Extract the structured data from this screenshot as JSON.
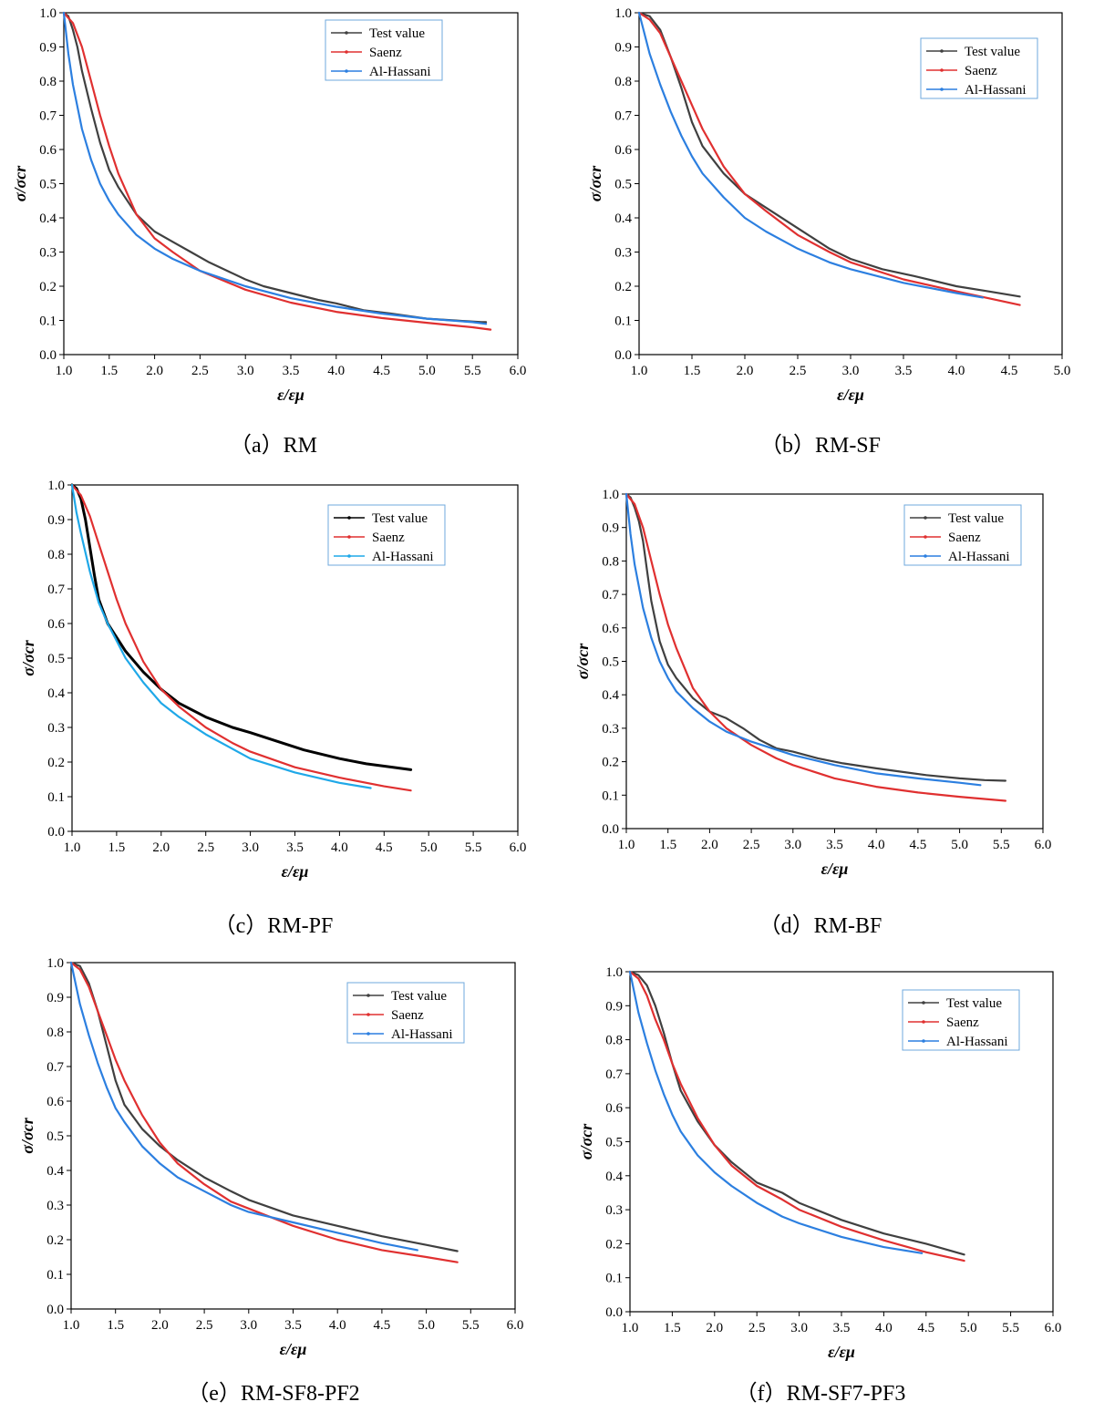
{
  "colors": {
    "test": "#404040",
    "saenz": "#e03030",
    "alhassani": "#2c7fe0",
    "alhassani_c": "#1fa8e8",
    "legend_border": "#6fa8dc"
  },
  "chart_data": [
    {
      "type": "line",
      "caption": "（a）RM",
      "xlabel": "ε/εμ",
      "ylabel": "σ/σcr",
      "xlim": [
        1.0,
        6.0
      ],
      "ylim": [
        0.0,
        1.0
      ],
      "xstep": 0.5,
      "ystep": 0.1,
      "legend": [
        "Test value",
        "Saenz",
        "Al-Hassani"
      ],
      "legend_position": "top-right",
      "series": [
        {
          "name": "Test value",
          "x": [
            1.0,
            1.05,
            1.1,
            1.15,
            1.2,
            1.3,
            1.4,
            1.5,
            1.6,
            1.8,
            2.0,
            2.2,
            2.4,
            2.6,
            2.8,
            3.0,
            3.2,
            3.5,
            3.8,
            4.0,
            4.3,
            4.6,
            5.0,
            5.3,
            5.6,
            5.65
          ],
          "y": [
            1.0,
            0.99,
            0.95,
            0.9,
            0.83,
            0.72,
            0.62,
            0.54,
            0.49,
            0.41,
            0.36,
            0.33,
            0.3,
            0.27,
            0.245,
            0.22,
            0.2,
            0.18,
            0.16,
            0.15,
            0.13,
            0.12,
            0.105,
            0.1,
            0.095,
            0.095
          ]
        },
        {
          "name": "Saenz",
          "x": [
            1.0,
            1.1,
            1.2,
            1.3,
            1.4,
            1.5,
            1.6,
            1.8,
            2.0,
            2.2,
            2.5,
            3.0,
            3.5,
            4.0,
            4.5,
            5.0,
            5.5,
            5.7
          ],
          "y": [
            1.0,
            0.97,
            0.9,
            0.8,
            0.7,
            0.61,
            0.53,
            0.41,
            0.34,
            0.3,
            0.245,
            0.19,
            0.152,
            0.125,
            0.107,
            0.093,
            0.08,
            0.073
          ]
        },
        {
          "name": "Al-Hassani",
          "x": [
            1.0,
            1.05,
            1.1,
            1.2,
            1.3,
            1.4,
            1.5,
            1.6,
            1.8,
            2.0,
            2.2,
            2.5,
            3.0,
            3.5,
            4.0,
            4.5,
            5.0,
            5.5,
            5.65
          ],
          "y": [
            1.0,
            0.88,
            0.79,
            0.66,
            0.57,
            0.5,
            0.45,
            0.41,
            0.35,
            0.31,
            0.28,
            0.245,
            0.2,
            0.165,
            0.14,
            0.12,
            0.105,
            0.095,
            0.09
          ]
        }
      ]
    },
    {
      "type": "line",
      "caption": "（b）RM-SF",
      "xlabel": "ε/εμ",
      "ylabel": "σ/σcr",
      "xlim": [
        1.0,
        5.0
      ],
      "ylim": [
        0.0,
        1.0
      ],
      "xstep": 0.5,
      "ystep": 0.1,
      "legend": [
        "Test value",
        "Saenz",
        "Al-Hassani"
      ],
      "legend_position": "top-right",
      "series": [
        {
          "name": "Test value",
          "x": [
            1.0,
            1.1,
            1.2,
            1.3,
            1.4,
            1.5,
            1.6,
            1.8,
            2.0,
            2.2,
            2.5,
            2.8,
            3.0,
            3.3,
            3.6,
            4.0,
            4.3,
            4.6
          ],
          "y": [
            1.0,
            0.99,
            0.95,
            0.87,
            0.78,
            0.68,
            0.61,
            0.53,
            0.47,
            0.43,
            0.37,
            0.31,
            0.28,
            0.25,
            0.23,
            0.2,
            0.185,
            0.17
          ]
        },
        {
          "name": "Saenz",
          "x": [
            1.0,
            1.1,
            1.2,
            1.3,
            1.4,
            1.5,
            1.6,
            1.8,
            2.0,
            2.2,
            2.5,
            2.8,
            3.0,
            3.5,
            4.0,
            4.3,
            4.6
          ],
          "y": [
            1.0,
            0.98,
            0.94,
            0.87,
            0.8,
            0.73,
            0.66,
            0.55,
            0.47,
            0.42,
            0.35,
            0.3,
            0.27,
            0.22,
            0.185,
            0.165,
            0.145
          ]
        },
        {
          "name": "Al-Hassani",
          "x": [
            1.0,
            1.1,
            1.2,
            1.3,
            1.4,
            1.5,
            1.6,
            1.8,
            2.0,
            2.2,
            2.5,
            2.8,
            3.0,
            3.5,
            4.0,
            4.25
          ],
          "y": [
            1.0,
            0.88,
            0.79,
            0.71,
            0.64,
            0.58,
            0.53,
            0.46,
            0.4,
            0.36,
            0.31,
            0.27,
            0.25,
            0.21,
            0.18,
            0.167
          ]
        }
      ]
    },
    {
      "type": "line",
      "caption": "（c）RM-PF",
      "xlabel": "ε/εμ",
      "ylabel": "σ/σcr",
      "xlim": [
        1.0,
        6.0
      ],
      "ylim": [
        0.0,
        1.0
      ],
      "xstep": 0.5,
      "ystep": 0.1,
      "legend": [
        "Test value",
        "Saenz",
        "Al-Hassani"
      ],
      "legend_position": "top-right",
      "series": [
        {
          "name": "Test value",
          "x": [
            1.0,
            1.05,
            1.1,
            1.15,
            1.2,
            1.25,
            1.3,
            1.4,
            1.5,
            1.6,
            1.8,
            2.0,
            2.2,
            2.5,
            2.8,
            3.0,
            3.3,
            3.6,
            4.0,
            4.3,
            4.6,
            4.8
          ],
          "y": [
            1.0,
            0.99,
            0.96,
            0.9,
            0.82,
            0.74,
            0.67,
            0.6,
            0.56,
            0.52,
            0.46,
            0.41,
            0.37,
            0.33,
            0.3,
            0.285,
            0.26,
            0.235,
            0.21,
            0.195,
            0.185,
            0.178
          ]
        },
        {
          "name": "Saenz",
          "x": [
            1.0,
            1.1,
            1.2,
            1.3,
            1.4,
            1.5,
            1.6,
            1.8,
            2.0,
            2.2,
            2.5,
            2.8,
            3.0,
            3.5,
            4.0,
            4.5,
            4.8
          ],
          "y": [
            1.0,
            0.97,
            0.91,
            0.83,
            0.75,
            0.67,
            0.6,
            0.49,
            0.41,
            0.36,
            0.3,
            0.255,
            0.23,
            0.185,
            0.155,
            0.13,
            0.118
          ]
        },
        {
          "name": "Al-Hassani",
          "x": [
            1.0,
            1.05,
            1.1,
            1.2,
            1.3,
            1.4,
            1.5,
            1.6,
            1.8,
            2.0,
            2.2,
            2.5,
            3.0,
            3.5,
            4.0,
            4.35
          ],
          "y": [
            1.0,
            0.92,
            0.86,
            0.75,
            0.66,
            0.6,
            0.55,
            0.5,
            0.43,
            0.37,
            0.33,
            0.28,
            0.21,
            0.17,
            0.14,
            0.125
          ]
        }
      ]
    },
    {
      "type": "line",
      "caption": "（d）RM-BF",
      "xlabel": "ε/εμ",
      "ylabel": "σ/σcr",
      "xlim": [
        1.0,
        6.0
      ],
      "ylim": [
        0.0,
        1.0
      ],
      "xstep": 0.5,
      "ystep": 0.1,
      "legend": [
        "Test value",
        "Saenz",
        "Al-Hassani"
      ],
      "legend_position": "top-right",
      "series": [
        {
          "name": "Test value",
          "x": [
            1.0,
            1.05,
            1.1,
            1.15,
            1.2,
            1.25,
            1.3,
            1.4,
            1.5,
            1.6,
            1.8,
            2.0,
            2.2,
            2.4,
            2.6,
            2.8,
            3.0,
            3.3,
            3.6,
            4.0,
            4.3,
            4.6,
            5.0,
            5.3,
            5.55
          ],
          "y": [
            1.0,
            0.99,
            0.96,
            0.92,
            0.86,
            0.77,
            0.68,
            0.56,
            0.49,
            0.45,
            0.39,
            0.35,
            0.33,
            0.3,
            0.265,
            0.24,
            0.23,
            0.21,
            0.195,
            0.18,
            0.17,
            0.16,
            0.15,
            0.145,
            0.143
          ]
        },
        {
          "name": "Saenz",
          "x": [
            1.0,
            1.1,
            1.2,
            1.3,
            1.4,
            1.5,
            1.6,
            1.8,
            2.0,
            2.2,
            2.5,
            2.8,
            3.0,
            3.5,
            4.0,
            4.5,
            5.0,
            5.55
          ],
          "y": [
            1.0,
            0.97,
            0.9,
            0.8,
            0.7,
            0.61,
            0.54,
            0.42,
            0.35,
            0.3,
            0.25,
            0.21,
            0.19,
            0.15,
            0.125,
            0.108,
            0.095,
            0.083
          ]
        },
        {
          "name": "Al-Hassani",
          "x": [
            1.0,
            1.05,
            1.1,
            1.2,
            1.3,
            1.4,
            1.5,
            1.6,
            1.8,
            2.0,
            2.2,
            2.5,
            3.0,
            3.5,
            4.0,
            4.5,
            5.0,
            5.25
          ],
          "y": [
            1.0,
            0.88,
            0.79,
            0.66,
            0.57,
            0.5,
            0.45,
            0.41,
            0.36,
            0.32,
            0.29,
            0.26,
            0.22,
            0.19,
            0.165,
            0.15,
            0.137,
            0.13
          ]
        }
      ]
    },
    {
      "type": "line",
      "caption": "（e）RM-SF8-PF2",
      "xlabel": "ε/εμ",
      "ylabel": "σ/σcr",
      "xlim": [
        1.0,
        6.0
      ],
      "ylim": [
        0.0,
        1.0
      ],
      "xstep": 0.5,
      "ystep": 0.1,
      "legend": [
        "Test value",
        "Saenz",
        "Al-Hassani"
      ],
      "legend_position": "top-right",
      "series": [
        {
          "name": "Test value",
          "x": [
            1.0,
            1.1,
            1.2,
            1.3,
            1.4,
            1.5,
            1.6,
            1.8,
            2.0,
            2.2,
            2.5,
            2.8,
            3.0,
            3.5,
            4.0,
            4.5,
            5.0,
            5.35
          ],
          "y": [
            1.0,
            0.99,
            0.94,
            0.86,
            0.76,
            0.66,
            0.59,
            0.52,
            0.47,
            0.43,
            0.38,
            0.34,
            0.315,
            0.27,
            0.24,
            0.21,
            0.185,
            0.167
          ]
        },
        {
          "name": "Saenz",
          "x": [
            1.0,
            1.1,
            1.2,
            1.3,
            1.4,
            1.5,
            1.6,
            1.8,
            2.0,
            2.2,
            2.5,
            2.8,
            3.0,
            3.5,
            4.0,
            4.5,
            5.0,
            5.35
          ],
          "y": [
            1.0,
            0.98,
            0.93,
            0.86,
            0.79,
            0.72,
            0.66,
            0.56,
            0.48,
            0.42,
            0.36,
            0.31,
            0.29,
            0.24,
            0.2,
            0.17,
            0.15,
            0.135
          ]
        },
        {
          "name": "Al-Hassani",
          "x": [
            1.0,
            1.1,
            1.2,
            1.3,
            1.4,
            1.5,
            1.6,
            1.8,
            2.0,
            2.2,
            2.5,
            2.8,
            3.0,
            3.5,
            4.0,
            4.5,
            4.9
          ],
          "y": [
            1.0,
            0.88,
            0.79,
            0.71,
            0.64,
            0.58,
            0.54,
            0.47,
            0.42,
            0.38,
            0.34,
            0.3,
            0.28,
            0.25,
            0.22,
            0.19,
            0.17
          ]
        }
      ]
    },
    {
      "type": "line",
      "caption": "（f）RM-SF7-PF3",
      "xlabel": "ε/εμ",
      "ylabel": "σ/σcr",
      "xlim": [
        1.0,
        6.0
      ],
      "ylim": [
        0.0,
        1.0
      ],
      "xstep": 0.5,
      "ystep": 0.1,
      "legend": [
        "Test value",
        "Saenz",
        "Al-Hassani"
      ],
      "legend_position": "top-right",
      "series": [
        {
          "name": "Test value",
          "x": [
            1.0,
            1.1,
            1.2,
            1.3,
            1.4,
            1.5,
            1.6,
            1.8,
            2.0,
            2.2,
            2.5,
            2.8,
            3.0,
            3.5,
            4.0,
            4.5,
            4.95
          ],
          "y": [
            1.0,
            0.99,
            0.96,
            0.9,
            0.82,
            0.73,
            0.65,
            0.56,
            0.49,
            0.44,
            0.38,
            0.35,
            0.32,
            0.27,
            0.23,
            0.2,
            0.168
          ]
        },
        {
          "name": "Saenz",
          "x": [
            1.0,
            1.1,
            1.2,
            1.3,
            1.4,
            1.5,
            1.6,
            1.8,
            2.0,
            2.2,
            2.5,
            2.8,
            3.0,
            3.5,
            4.0,
            4.5,
            4.95
          ],
          "y": [
            1.0,
            0.98,
            0.93,
            0.86,
            0.8,
            0.73,
            0.67,
            0.57,
            0.49,
            0.43,
            0.37,
            0.33,
            0.3,
            0.25,
            0.21,
            0.175,
            0.15
          ]
        },
        {
          "name": "Al-Hassani",
          "x": [
            1.0,
            1.1,
            1.2,
            1.3,
            1.4,
            1.5,
            1.6,
            1.8,
            2.0,
            2.2,
            2.5,
            2.8,
            3.0,
            3.5,
            4.0,
            4.45
          ],
          "y": [
            1.0,
            0.88,
            0.79,
            0.71,
            0.64,
            0.58,
            0.53,
            0.46,
            0.41,
            0.37,
            0.32,
            0.28,
            0.26,
            0.22,
            0.19,
            0.172
          ]
        }
      ]
    }
  ]
}
